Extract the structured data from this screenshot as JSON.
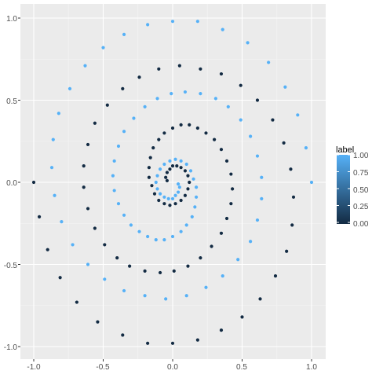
{
  "chart_data": {
    "type": "scatter",
    "title": "",
    "xlabel": "",
    "ylabel": "",
    "xlim": [
      -1.0,
      1.0
    ],
    "ylim": [
      -1.0,
      1.0
    ],
    "x_ticks": [
      "-1.0",
      "-0.5",
      "0.0",
      "0.5",
      "1.0"
    ],
    "y_ticks": [
      "1.0",
      "0.5",
      "0.0",
      "-0.5",
      "-1.0"
    ],
    "grid": true,
    "legend": {
      "title": "label",
      "position": "right",
      "type": "colorbar",
      "low_color": "#132B43",
      "high_color": "#56B1F7",
      "ticks": [
        "1.00",
        "0.75",
        "0.50",
        "0.25",
        "0.00"
      ]
    },
    "series": [
      {
        "label_value": 0,
        "color": "#132B43",
        "points": [
          [
            -1.0,
            0.0
          ],
          [
            -0.96,
            -0.21
          ],
          [
            -0.9,
            -0.41
          ],
          [
            -0.81,
            -0.58
          ],
          [
            -0.69,
            -0.73
          ],
          [
            -0.54,
            -0.85
          ],
          [
            -0.36,
            -0.93
          ],
          [
            -0.18,
            -0.98
          ],
          [
            0.0,
            -0.98
          ],
          [
            0.18,
            -0.96
          ],
          [
            0.35,
            -0.9
          ],
          [
            0.5,
            -0.82
          ],
          [
            0.63,
            -0.71
          ],
          [
            0.74,
            -0.57
          ],
          [
            0.82,
            -0.42
          ],
          [
            0.86,
            -0.26
          ],
          [
            0.87,
            -0.09
          ],
          [
            0.85,
            0.08
          ],
          [
            0.8,
            0.24
          ],
          [
            0.72,
            0.38
          ],
          [
            0.61,
            0.5
          ],
          [
            0.49,
            0.59
          ],
          [
            0.35,
            0.66
          ],
          [
            0.2,
            0.69
          ],
          [
            0.05,
            0.71
          ],
          [
            -0.1,
            0.69
          ],
          [
            -0.24,
            0.64
          ],
          [
            -0.36,
            0.57
          ],
          [
            -0.47,
            0.47
          ],
          [
            -0.56,
            0.36
          ],
          [
            -0.61,
            0.23
          ],
          [
            -0.64,
            0.1
          ],
          [
            -0.64,
            -0.03
          ],
          [
            -0.61,
            -0.16
          ],
          [
            -0.56,
            -0.28
          ],
          [
            -0.49,
            -0.38
          ],
          [
            -0.4,
            -0.46
          ],
          [
            -0.31,
            -0.51
          ],
          [
            -0.2,
            -0.54
          ],
          [
            -0.09,
            -0.55
          ],
          [
            0.01,
            -0.54
          ],
          [
            0.11,
            -0.51
          ],
          [
            0.2,
            -0.46
          ],
          [
            0.28,
            -0.39
          ],
          [
            0.35,
            -0.31
          ],
          [
            0.39,
            -0.22
          ],
          [
            0.42,
            -0.13
          ],
          [
            0.43,
            -0.04
          ],
          [
            0.42,
            0.05
          ],
          [
            0.39,
            0.13
          ],
          [
            0.35,
            0.2
          ],
          [
            0.3,
            0.26
          ],
          [
            0.24,
            0.3
          ],
          [
            0.18,
            0.33
          ],
          [
            0.12,
            0.35
          ],
          [
            0.06,
            0.35
          ],
          [
            0.0,
            0.33
          ],
          [
            -0.06,
            0.3
          ],
          [
            -0.1,
            0.26
          ],
          [
            -0.14,
            0.21
          ],
          [
            -0.16,
            0.15
          ],
          [
            -0.17,
            0.09
          ],
          [
            -0.17,
            0.03
          ],
          [
            -0.15,
            -0.02
          ],
          [
            -0.13,
            -0.07
          ],
          [
            -0.1,
            -0.11
          ],
          [
            -0.06,
            -0.13
          ],
          [
            -0.02,
            -0.14
          ],
          [
            0.02,
            -0.13
          ],
          [
            0.06,
            -0.11
          ],
          [
            0.09,
            -0.08
          ],
          [
            0.11,
            -0.04
          ],
          [
            0.12,
            0.0
          ],
          [
            0.11,
            0.04
          ],
          [
            0.09,
            0.07
          ],
          [
            0.06,
            0.09
          ],
          [
            0.03,
            0.1
          ],
          [
            0.0,
            0.1
          ],
          [
            -0.02,
            0.08
          ],
          [
            -0.04,
            0.06
          ],
          [
            -0.05,
            0.03
          ],
          [
            -0.04,
            0.01
          ]
        ]
      },
      {
        "label_value": 1,
        "color": "#56B1F7",
        "points": [
          [
            1.0,
            0.0
          ],
          [
            0.96,
            0.21
          ],
          [
            0.9,
            0.41
          ],
          [
            0.81,
            0.58
          ],
          [
            0.69,
            0.73
          ],
          [
            0.54,
            0.85
          ],
          [
            0.36,
            0.93
          ],
          [
            0.18,
            0.98
          ],
          [
            0.0,
            0.98
          ],
          [
            -0.18,
            0.96
          ],
          [
            -0.35,
            0.9
          ],
          [
            -0.5,
            0.82
          ],
          [
            -0.63,
            0.71
          ],
          [
            -0.74,
            0.57
          ],
          [
            -0.82,
            0.42
          ],
          [
            -0.86,
            0.26
          ],
          [
            -0.87,
            0.09
          ],
          [
            -0.85,
            -0.08
          ],
          [
            -0.8,
            -0.24
          ],
          [
            -0.72,
            -0.38
          ],
          [
            -0.61,
            -0.5
          ],
          [
            -0.49,
            -0.59
          ],
          [
            -0.35,
            -0.66
          ],
          [
            -0.2,
            -0.69
          ],
          [
            -0.05,
            -0.71
          ],
          [
            0.1,
            -0.69
          ],
          [
            0.24,
            -0.64
          ],
          [
            0.36,
            -0.57
          ],
          [
            0.47,
            -0.47
          ],
          [
            0.56,
            -0.36
          ],
          [
            0.61,
            -0.23
          ],
          [
            0.64,
            -0.1
          ],
          [
            0.64,
            0.03
          ],
          [
            0.61,
            0.16
          ],
          [
            0.56,
            0.28
          ],
          [
            0.49,
            0.38
          ],
          [
            0.4,
            0.46
          ],
          [
            0.31,
            0.51
          ],
          [
            0.2,
            0.54
          ],
          [
            0.09,
            0.55
          ],
          [
            -0.01,
            0.54
          ],
          [
            -0.11,
            0.51
          ],
          [
            -0.2,
            0.46
          ],
          [
            -0.28,
            0.39
          ],
          [
            -0.35,
            0.31
          ],
          [
            -0.39,
            0.22
          ],
          [
            -0.42,
            0.13
          ],
          [
            -0.43,
            0.04
          ],
          [
            -0.42,
            -0.05
          ],
          [
            -0.39,
            -0.13
          ],
          [
            -0.35,
            -0.2
          ],
          [
            -0.3,
            -0.26
          ],
          [
            -0.24,
            -0.3
          ],
          [
            -0.18,
            -0.33
          ],
          [
            -0.12,
            -0.35
          ],
          [
            -0.06,
            -0.35
          ],
          [
            0.0,
            -0.33
          ],
          [
            0.06,
            -0.3
          ],
          [
            0.1,
            -0.26
          ],
          [
            0.14,
            -0.21
          ],
          [
            0.16,
            -0.15
          ],
          [
            0.17,
            -0.09
          ],
          [
            0.17,
            -0.03
          ],
          [
            0.15,
            0.02
          ],
          [
            0.13,
            0.07
          ],
          [
            0.1,
            0.11
          ],
          [
            0.06,
            0.13
          ],
          [
            0.02,
            0.14
          ],
          [
            -0.02,
            0.13
          ],
          [
            -0.06,
            0.11
          ],
          [
            -0.09,
            0.08
          ],
          [
            -0.11,
            0.04
          ],
          [
            -0.12,
            0.0
          ],
          [
            -0.11,
            -0.04
          ],
          [
            -0.09,
            -0.07
          ],
          [
            -0.06,
            -0.09
          ],
          [
            -0.03,
            -0.1
          ],
          [
            0.0,
            -0.1
          ],
          [
            0.02,
            -0.08
          ],
          [
            0.04,
            -0.06
          ],
          [
            0.05,
            -0.03
          ],
          [
            0.04,
            -0.01
          ]
        ]
      }
    ]
  }
}
